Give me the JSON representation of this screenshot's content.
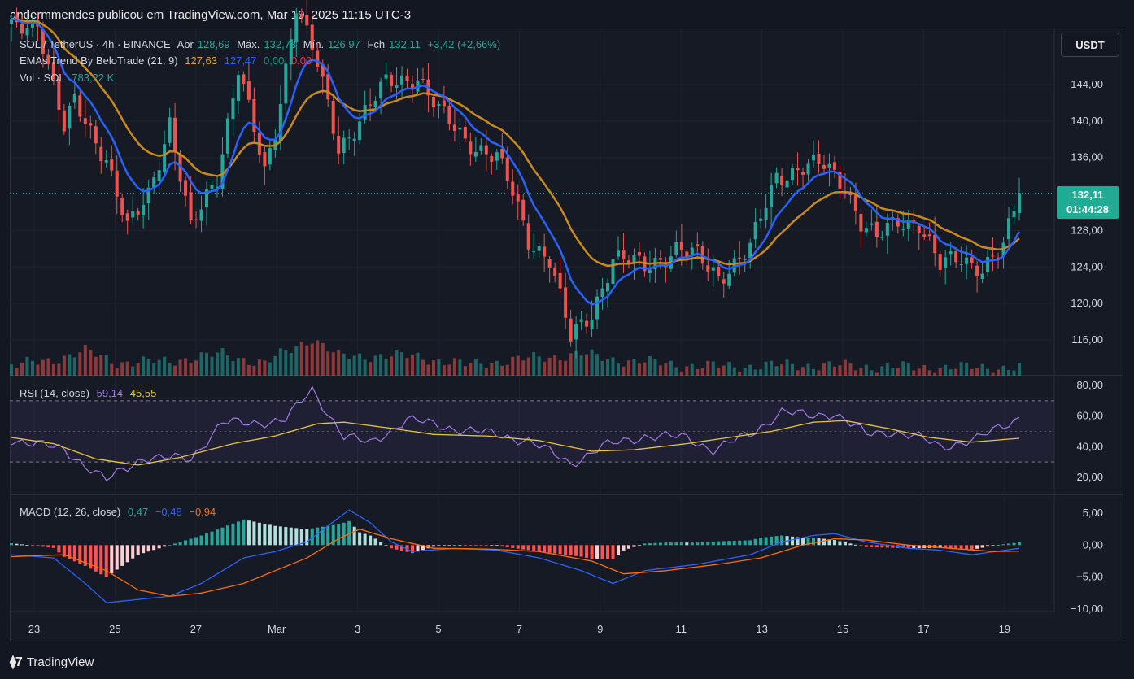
{
  "caption": "andermmendes publicou em TradingView.com, Mar 19, 2025 11:15 UTC-3",
  "legend": {
    "symbol": "SOL / TetherUS · 4h · BINANCE",
    "open_label": "Abr",
    "open_val": "128,69",
    "high_label": "Máx.",
    "high_val": "132,73",
    "low_label": "Mín.",
    "low_val": "126,97",
    "close_label": "Fch",
    "close_val": "132,11",
    "change": "+3,42 (+2,66%)",
    "ema_title": "EMAs Trend By BeloTrade (21, 9)",
    "ema_v1": "127,63",
    "ema_v2": "127,47",
    "ema_v3": "0,00",
    "ema_v4": "0,00",
    "vol_title": "Vol · SOL",
    "vol_val": "783,22 K",
    "rsi_title": "RSI (14, close)",
    "rsi_v1": "59,14",
    "rsi_v2": "45,55",
    "macd_title": "MACD (12, 26, close)",
    "macd_v1": "0,47",
    "macd_v2": "−0,48",
    "macd_v3": "−0,94"
  },
  "currency_button": "USDT",
  "price_badge": {
    "price": "132,11",
    "countdown": "01:44:28"
  },
  "logo_text": "TradingView",
  "colors": {
    "up": "#26a69a",
    "down": "#ef5350",
    "ema_fast": "#2962ff",
    "ema_slow": "#c98a1b",
    "rsi": "#a17ae6",
    "rsi_ma": "#e6c53a",
    "macd": "#2962ff",
    "signal": "#ff6d00"
  },
  "chart_data": [
    {
      "type": "candlestick",
      "title": "SOL / TetherUS · 4h · BINANCE",
      "x_ticks": [
        "23",
        "25",
        "27",
        "Mar",
        "3",
        "5",
        "7",
        "9",
        "11",
        "13",
        "15",
        "17",
        "19"
      ],
      "y_ticks": [
        "116,00",
        "120,00",
        "124,00",
        "128,00",
        "132,00",
        "136,00",
        "140,00",
        "144,00"
      ],
      "ylim": [
        112.5,
        148.5
      ],
      "close_anchors": [
        [
          0,
          150
        ],
        [
          5,
          151
        ],
        [
          10,
          139
        ],
        [
          12,
          142
        ],
        [
          18,
          136
        ],
        [
          22,
          128
        ],
        [
          26,
          132
        ],
        [
          30,
          140
        ],
        [
          34,
          128
        ],
        [
          39,
          134
        ],
        [
          43,
          146
        ],
        [
          48,
          134
        ],
        [
          50,
          139
        ],
        [
          54,
          153
        ],
        [
          58,
          146
        ],
        [
          62,
          137
        ],
        [
          67,
          141
        ],
        [
          71,
          144
        ],
        [
          77,
          145
        ],
        [
          81,
          141
        ],
        [
          86,
          138
        ],
        [
          92,
          136
        ],
        [
          95,
          132
        ],
        [
          98,
          127
        ],
        [
          102,
          125
        ],
        [
          106,
          116
        ],
        [
          110,
          119
        ],
        [
          114,
          125
        ],
        [
          120,
          124
        ],
        [
          126,
          126
        ],
        [
          130,
          125
        ],
        [
          134,
          123
        ],
        [
          136,
          124
        ],
        [
          140,
          126
        ],
        [
          145,
          134
        ],
        [
          150,
          135
        ],
        [
          154,
          135
        ],
        [
          158,
          133
        ],
        [
          161,
          129
        ],
        [
          164,
          127
        ],
        [
          168,
          129
        ],
        [
          172,
          129
        ],
        [
          176,
          124
        ],
        [
          180,
          125
        ],
        [
          184,
          124
        ],
        [
          188,
          126
        ],
        [
          191,
          132
        ]
      ],
      "last_price": 132.11,
      "ema_fast_last": 127.47,
      "ema_slow_last": 127.63
    },
    {
      "type": "bar",
      "title": "Vol · SOL",
      "volume_anchors": [
        [
          0,
          7
        ],
        [
          8,
          12
        ],
        [
          14,
          18
        ],
        [
          20,
          10
        ],
        [
          28,
          10
        ],
        [
          40,
          16
        ],
        [
          48,
          9
        ],
        [
          57,
          28
        ],
        [
          62,
          14
        ],
        [
          71,
          15
        ],
        [
          77,
          14
        ],
        [
          86,
          8
        ],
        [
          102,
          14
        ],
        [
          108,
          16
        ],
        [
          114,
          12
        ],
        [
          130,
          7
        ],
        [
          140,
          7
        ],
        [
          148,
          8
        ],
        [
          160,
          7
        ],
        [
          170,
          6
        ],
        [
          180,
          6
        ],
        [
          190,
          6
        ]
      ]
    },
    {
      "type": "line",
      "title": "RSI (14, close)",
      "y_ticks": [
        "20,00",
        "40,00",
        "60,00",
        "80,00"
      ],
      "ylim": [
        15,
        82
      ],
      "bands": [
        30,
        70
      ],
      "rsi_anchors": [
        [
          0,
          45
        ],
        [
          10,
          38
        ],
        [
          18,
          18
        ],
        [
          25,
          33
        ],
        [
          34,
          32
        ],
        [
          40,
          56
        ],
        [
          45,
          55
        ],
        [
          52,
          58
        ],
        [
          57,
          77
        ],
        [
          63,
          47
        ],
        [
          68,
          42
        ],
        [
          75,
          58
        ],
        [
          82,
          53
        ],
        [
          88,
          50
        ],
        [
          98,
          44
        ],
        [
          106,
          29
        ],
        [
          112,
          40
        ],
        [
          120,
          47
        ],
        [
          128,
          46
        ],
        [
          133,
          38
        ],
        [
          140,
          48
        ],
        [
          146,
          63
        ],
        [
          151,
          60
        ],
        [
          156,
          62
        ],
        [
          162,
          48
        ],
        [
          167,
          50
        ],
        [
          172,
          46
        ],
        [
          176,
          40
        ],
        [
          183,
          45
        ],
        [
          191,
          59
        ]
      ],
      "ma_anchors": [
        [
          0,
          46
        ],
        [
          8,
          42
        ],
        [
          16,
          32
        ],
        [
          24,
          28
        ],
        [
          32,
          33
        ],
        [
          42,
          42
        ],
        [
          50,
          47
        ],
        [
          58,
          55
        ],
        [
          63,
          56
        ],
        [
          72,
          52
        ],
        [
          80,
          48
        ],
        [
          90,
          47
        ],
        [
          100,
          44
        ],
        [
          110,
          37
        ],
        [
          118,
          38
        ],
        [
          128,
          42
        ],
        [
          136,
          46
        ],
        [
          144,
          50
        ],
        [
          152,
          56
        ],
        [
          158,
          57
        ],
        [
          166,
          52
        ],
        [
          174,
          46
        ],
        [
          182,
          43
        ],
        [
          191,
          45.5
        ]
      ],
      "last_rsi": 59.14,
      "last_ma": 45.55
    },
    {
      "type": "line",
      "title": "MACD (12, 26, close)",
      "y_ticks": [
        "−10,00",
        "−5,00",
        "0,00",
        "5,00"
      ],
      "ylim": [
        -11,
        6.5
      ],
      "macd_anchors": [
        [
          0,
          -1.5
        ],
        [
          8,
          -2
        ],
        [
          14,
          -6
        ],
        [
          18,
          -9
        ],
        [
          24,
          -8.5
        ],
        [
          30,
          -8
        ],
        [
          36,
          -6
        ],
        [
          44,
          -2
        ],
        [
          50,
          -1
        ],
        [
          56,
          0.5
        ],
        [
          60,
          3
        ],
        [
          64,
          5.5
        ],
        [
          68,
          3.5
        ],
        [
          72,
          0.5
        ],
        [
          76,
          -1
        ],
        [
          84,
          -0.5
        ],
        [
          92,
          -0.8
        ],
        [
          100,
          -2
        ],
        [
          108,
          -4
        ],
        [
          114,
          -6
        ],
        [
          120,
          -4
        ],
        [
          130,
          -3
        ],
        [
          140,
          -1.5
        ],
        [
          146,
          0.5
        ],
        [
          152,
          1.5
        ],
        [
          156,
          1.8
        ],
        [
          162,
          0.5
        ],
        [
          170,
          -0.5
        ],
        [
          176,
          -0.8
        ],
        [
          182,
          -1.5
        ],
        [
          191,
          -0.5
        ]
      ],
      "signal_anchors": [
        [
          0,
          -1.8
        ],
        [
          10,
          -1.5
        ],
        [
          18,
          -4
        ],
        [
          24,
          -7
        ],
        [
          30,
          -8
        ],
        [
          36,
          -7.5
        ],
        [
          44,
          -6
        ],
        [
          50,
          -4
        ],
        [
          56,
          -2
        ],
        [
          62,
          1
        ],
        [
          66,
          2.5
        ],
        [
          72,
          1
        ],
        [
          80,
          -0.5
        ],
        [
          90,
          -0.6
        ],
        [
          100,
          -1
        ],
        [
          110,
          -2.5
        ],
        [
          116,
          -4.5
        ],
        [
          124,
          -4
        ],
        [
          134,
          -3
        ],
        [
          142,
          -2
        ],
        [
          150,
          0
        ],
        [
          156,
          1
        ],
        [
          162,
          0.8
        ],
        [
          170,
          0
        ],
        [
          178,
          -0.5
        ],
        [
          186,
          -1
        ],
        [
          191,
          -0.94
        ]
      ],
      "last_macd": -0.48,
      "last_signal": -0.94,
      "last_hist": 0.47
    }
  ]
}
